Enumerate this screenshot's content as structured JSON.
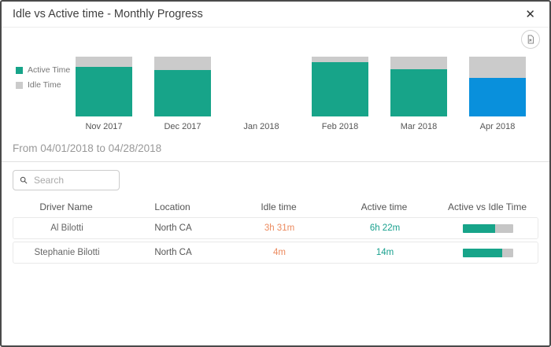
{
  "dialog": {
    "title": "Idle vs Active time - Monthly Progress",
    "close_glyph": "✕"
  },
  "colors": {
    "active_time": "#17A489",
    "idle_time": "#CBCBCB",
    "selected_month": "#0990DC",
    "idle_text": "#EC8A5E",
    "active_text": "#18A08E",
    "progress_fill": "#17A489",
    "progress_track": "#C6C6C6"
  },
  "legend": {
    "items": [
      {
        "label": "Active Time",
        "color": "#17A489"
      },
      {
        "label": "Idle Time",
        "color": "#CBCBCB"
      }
    ]
  },
  "chart_data": {
    "type": "bar",
    "stacked": true,
    "unit": "percent_of_month_total",
    "categories": [
      "Nov 2017",
      "Dec 2017",
      "Jan 2018",
      "Feb 2018",
      "Mar 2018",
      "Apr 2018"
    ],
    "series": [
      {
        "name": "Active Time",
        "values": [
          83,
          77,
          0,
          91,
          79,
          64
        ]
      },
      {
        "name": "Idle Time",
        "values": [
          17,
          23,
          0,
          9,
          21,
          36
        ]
      }
    ],
    "selected_category": "Apr 2018",
    "legend_position": "left",
    "ylim": [
      0,
      100
    ],
    "grid": false
  },
  "filter": {
    "date_range": "From 04/01/2018 to 04/28/2018"
  },
  "search": {
    "placeholder": "Search"
  },
  "table": {
    "headers": [
      "Driver Name",
      "Location",
      "Idle time",
      "Active time",
      "Active vs Idle Time"
    ],
    "rows": [
      {
        "driver": "Al Bilotti",
        "location": "North CA",
        "idle_time": "3h 31m",
        "active_time": "6h 22m",
        "active_pct": 64
      },
      {
        "driver": "Stephanie Bilotti",
        "location": "North CA",
        "idle_time": "4m",
        "active_time": "14m",
        "active_pct": 78
      }
    ]
  }
}
